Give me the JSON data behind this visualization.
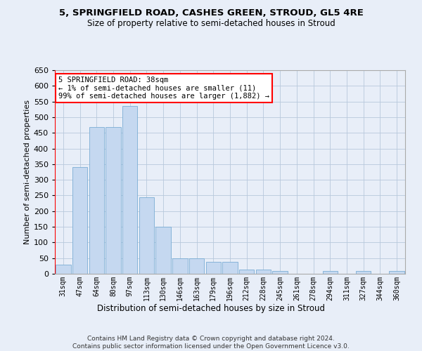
{
  "title_line1": "5, SPRINGFIELD ROAD, CASHES GREEN, STROUD, GL5 4RE",
  "title_line2": "Size of property relative to semi-detached houses in Stroud",
  "xlabel": "Distribution of semi-detached houses by size in Stroud",
  "ylabel": "Number of semi-detached properties",
  "bar_values": [
    30,
    340,
    468,
    468,
    535,
    245,
    150,
    50,
    50,
    38,
    38,
    14,
    14,
    8,
    0,
    0,
    8,
    0,
    8,
    0,
    8
  ],
  "bar_labels": [
    "31sqm",
    "47sqm",
    "64sqm",
    "80sqm",
    "97sqm",
    "113sqm",
    "130sqm",
    "146sqm",
    "163sqm",
    "179sqm",
    "196sqm",
    "212sqm",
    "228sqm",
    "245sqm",
    "261sqm",
    "278sqm",
    "294sqm",
    "311sqm",
    "327sqm",
    "344sqm",
    "360sqm"
  ],
  "bar_color": "#c5d8f0",
  "bar_edge_color": "#7aadd4",
  "annotation_text": "5 SPRINGFIELD ROAD: 38sqm\n← 1% of semi-detached houses are smaller (11)\n99% of semi-detached houses are larger (1,882) →",
  "annotation_box_facecolor": "white",
  "annotation_box_edgecolor": "red",
  "ylim": [
    0,
    650
  ],
  "yticks": [
    0,
    50,
    100,
    150,
    200,
    250,
    300,
    350,
    400,
    450,
    500,
    550,
    600,
    650
  ],
  "footer_line1": "Contains HM Land Registry data © Crown copyright and database right 2024.",
  "footer_line2": "Contains public sector information licensed under the Open Government Licence v3.0.",
  "bg_color": "#e8eef8",
  "plot_bg_color": "#e8eef8",
  "grid_color": "#b8c8dc"
}
